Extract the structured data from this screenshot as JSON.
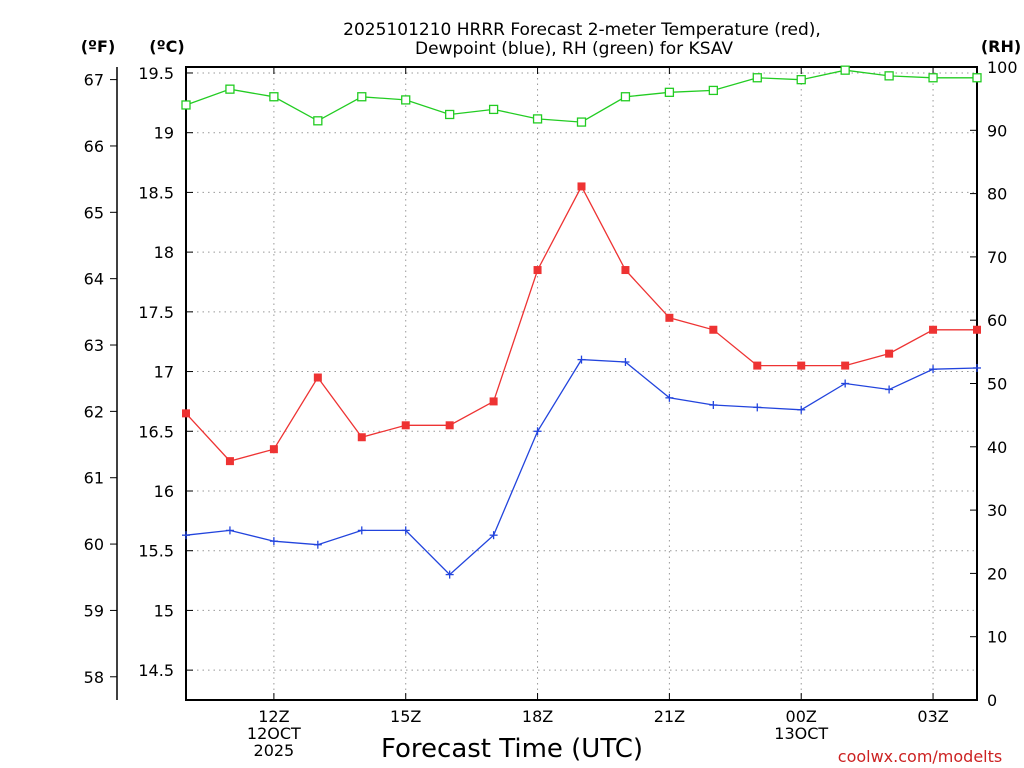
{
  "chart_data": {
    "type": "line",
    "title_line1": "2025101210 HRRR Forecast 2-meter Temperature (red),",
    "title_line2": "Dewpoint (blue), RH (green) for KSAV",
    "xlabel": "Forecast Time (UTC)",
    "footer": "coolwx.com/modelts",
    "units": {
      "fahrenheit": "(ºF)",
      "celsius": "(ºC)",
      "rh": "(RH)"
    },
    "x_hours": [
      10,
      11,
      12,
      13,
      14,
      15,
      16,
      17,
      18,
      19,
      20,
      21,
      22,
      23,
      24,
      25,
      26,
      27,
      28
    ],
    "x_range": [
      10,
      28
    ],
    "x_ticks": [
      {
        "hour": 12,
        "labels": [
          "12Z",
          "12OCT",
          "2025"
        ]
      },
      {
        "hour": 15,
        "labels": [
          "15Z"
        ]
      },
      {
        "hour": 18,
        "labels": [
          "18Z"
        ]
      },
      {
        "hour": 21,
        "labels": [
          "21Z"
        ]
      },
      {
        "hour": 24,
        "labels": [
          "00Z",
          "13OCT"
        ]
      },
      {
        "hour": 27,
        "labels": [
          "03Z"
        ]
      }
    ],
    "celsius_range": [
      14.25,
      19.55
    ],
    "celsius_ticks": [
      "14.5",
      "15",
      "15.5",
      "16",
      "16.5",
      "17",
      "17.5",
      "18",
      "18.5",
      "19",
      "19.5"
    ],
    "fahrenheit_ticks": [
      "58",
      "59",
      "60",
      "61",
      "62",
      "63",
      "64",
      "65",
      "66",
      "67"
    ],
    "rh_range": [
      0,
      100
    ],
    "rh_ticks": [
      "0",
      "10",
      "20",
      "30",
      "40",
      "50",
      "60",
      "70",
      "80",
      "90",
      "100"
    ],
    "series": [
      {
        "name": "Temperature",
        "unit": "C",
        "color": "#ee3333",
        "marker": "square-filled",
        "values": [
          16.65,
          16.25,
          16.35,
          16.95,
          16.45,
          16.55,
          16.55,
          16.75,
          17.85,
          18.55,
          17.85,
          17.45,
          17.35,
          17.05,
          17.05,
          17.05,
          17.15,
          17.35,
          17.35
        ]
      },
      {
        "name": "Dewpoint",
        "unit": "C",
        "color": "#2244dd",
        "marker": "plus",
        "values": [
          15.63,
          15.67,
          15.58,
          15.55,
          15.67,
          15.67,
          15.3,
          15.63,
          16.5,
          17.1,
          17.08,
          16.78,
          16.72,
          16.7,
          16.68,
          16.9,
          16.85,
          17.02,
          17.03
        ]
      },
      {
        "name": "RH",
        "unit": "%",
        "color": "#22cc22",
        "marker": "square-open",
        "values": [
          94,
          96.5,
          95.3,
          91.5,
          95.3,
          94.8,
          92.5,
          93.3,
          91.8,
          91.3,
          95.3,
          96,
          96.3,
          98.3,
          98,
          99.5,
          98.6,
          98.3,
          98.3
        ]
      }
    ]
  }
}
